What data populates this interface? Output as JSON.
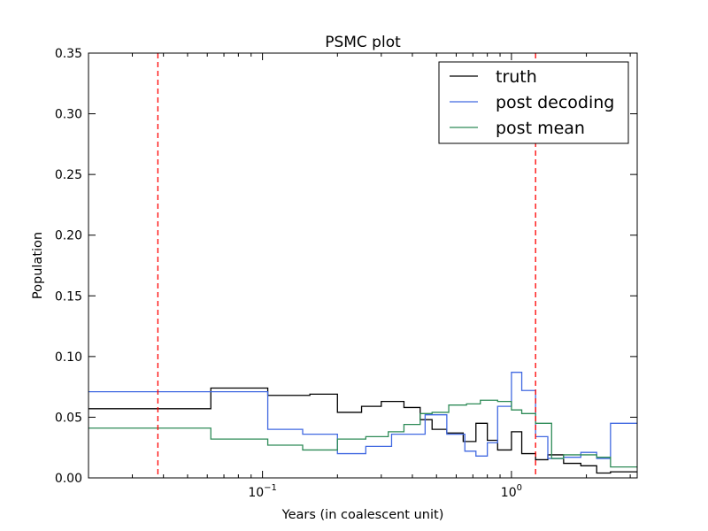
{
  "chart_data": {
    "type": "line",
    "title": "PSMC plot",
    "xlabel": "Years (in coalescent unit)",
    "ylabel": "Population",
    "xscale": "log",
    "xlim": [
      0.02,
      3.2
    ],
    "ylim": [
      0,
      0.35
    ],
    "yticks": [
      0.0,
      0.05,
      0.1,
      0.15,
      0.2,
      0.25,
      0.3,
      0.35
    ],
    "ytick_labels": [
      "0.00",
      "0.05",
      "0.10",
      "0.15",
      "0.20",
      "0.25",
      "0.30",
      "0.35"
    ],
    "xticks": [
      {
        "value": 0.1,
        "base": "10",
        "exp": "−1"
      },
      {
        "value": 1,
        "base": "10",
        "exp": "0"
      }
    ],
    "grid": false,
    "legend_position": "top-right",
    "vlines": [
      {
        "x": 0.038,
        "color": "#ff0000",
        "style": "dashed"
      },
      {
        "x": 1.25,
        "color": "#ff0000",
        "style": "dashed"
      }
    ],
    "series": [
      {
        "name": "truth",
        "color": "#000000",
        "step": "post",
        "x": [
          0.02,
          0.062,
          0.105,
          0.155,
          0.2,
          0.25,
          0.3,
          0.37,
          0.43,
          0.48,
          0.55,
          0.64,
          0.72,
          0.8,
          0.88,
          1.0,
          1.1,
          1.25,
          1.4,
          1.62,
          1.9,
          2.2,
          2.5
        ],
        "y": [
          0.057,
          0.074,
          0.068,
          0.069,
          0.054,
          0.059,
          0.063,
          0.058,
          0.048,
          0.04,
          0.037,
          0.03,
          0.045,
          0.031,
          0.023,
          0.038,
          0.02,
          0.015,
          0.019,
          0.012,
          0.01,
          0.004,
          0.005
        ],
        "x_end": 3.2
      },
      {
        "name": "post decoding",
        "color": "#4169e1",
        "step": "post",
        "x": [
          0.02,
          0.105,
          0.145,
          0.2,
          0.26,
          0.33,
          0.45,
          0.55,
          0.65,
          0.72,
          0.8,
          0.88,
          1.0,
          1.1,
          1.25,
          1.4,
          1.62,
          1.9,
          2.2,
          2.5
        ],
        "y": [
          0.071,
          0.04,
          0.036,
          0.02,
          0.026,
          0.036,
          0.052,
          0.036,
          0.022,
          0.018,
          0.029,
          0.059,
          0.087,
          0.072,
          0.034,
          0.016,
          0.017,
          0.021,
          0.016,
          0.045
        ],
        "x_end": 3.2
      },
      {
        "name": "post mean",
        "color": "#2e8b57",
        "step": "post",
        "x": [
          0.02,
          0.062,
          0.105,
          0.145,
          0.2,
          0.26,
          0.32,
          0.37,
          0.43,
          0.48,
          0.56,
          0.66,
          0.75,
          0.88,
          1.0,
          1.1,
          1.25,
          1.45,
          1.62,
          1.9,
          2.2,
          2.5
        ],
        "y": [
          0.041,
          0.032,
          0.027,
          0.023,
          0.032,
          0.034,
          0.038,
          0.044,
          0.053,
          0.054,
          0.06,
          0.061,
          0.064,
          0.063,
          0.056,
          0.053,
          0.045,
          0.016,
          0.019,
          0.019,
          0.017,
          0.009
        ],
        "x_end": 3.2
      }
    ]
  }
}
